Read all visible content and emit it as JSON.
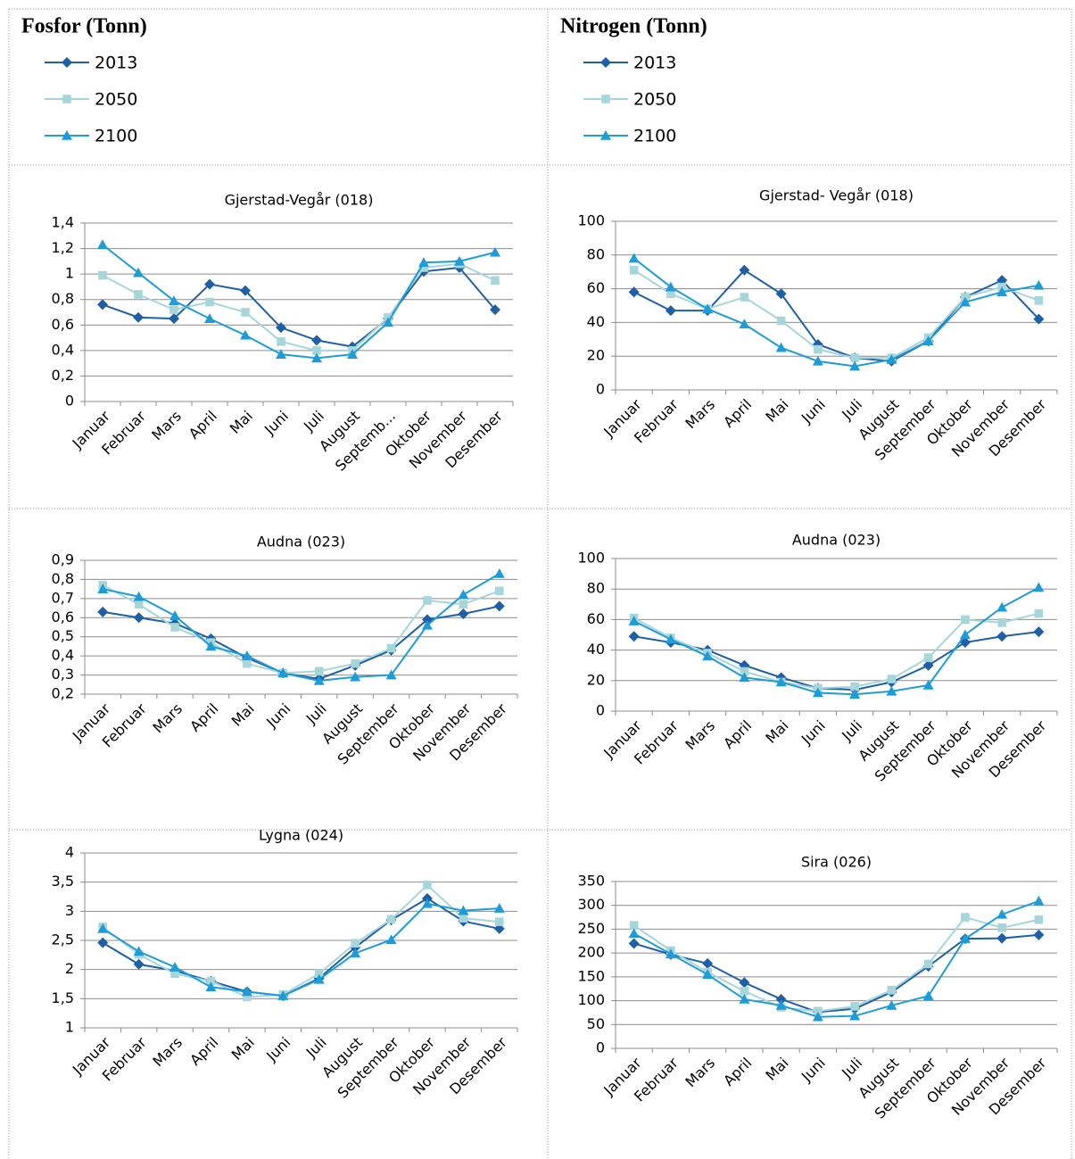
{
  "columns": [
    {
      "title": "Fosfor (Tonn)",
      "legend": [
        {
          "name": "2013",
          "color": "#1f5fa6",
          "marker": "diamond"
        },
        {
          "name": "2050",
          "color": "#a6d6da",
          "marker": "square"
        },
        {
          "name": "2100",
          "color": "#1e9cd7",
          "marker": "triangle"
        }
      ]
    },
    {
      "title": "Nitrogen (Tonn)",
      "legend": [
        {
          "name": "2013",
          "color": "#1f5fa6",
          "marker": "diamond"
        },
        {
          "name": "2050",
          "color": "#a6d6da",
          "marker": "square"
        },
        {
          "name": "2100",
          "color": "#1e9cd7",
          "marker": "triangle"
        }
      ]
    }
  ],
  "chart_data": [
    {
      "type": "line",
      "title": "Gjerstad-Vegår (018)",
      "categories": [
        "Januar",
        "Februar",
        "Mars",
        "April",
        "Mai",
        "Juni",
        "Juli",
        "August",
        "Septemb...",
        "Oktober",
        "November",
        "Desember"
      ],
      "ylim": [
        0,
        1.4
      ],
      "yticks": [
        0,
        {
          "value": 0.2,
          "label": "0,2"
        },
        {
          "value": 0.4,
          "label": "0,4"
        },
        {
          "value": 0.6,
          "label": "0,6"
        },
        {
          "value": 0.8,
          "label": "0,8"
        },
        1,
        {
          "value": 1.2,
          "label": "1,2"
        },
        {
          "value": 1.4,
          "label": "1,4"
        }
      ],
      "grid": true,
      "series": [
        {
          "color": "#1f5fa6",
          "marker": "diamond",
          "values": [
            0.76,
            0.66,
            0.65,
            0.92,
            0.87,
            0.58,
            0.48,
            0.43,
            0.65,
            1.02,
            1.05,
            0.72
          ]
        },
        {
          "color": "#a6d6da",
          "marker": "square",
          "values": [
            0.99,
            0.84,
            0.72,
            0.78,
            0.7,
            0.47,
            0.4,
            0.4,
            0.66,
            1.05,
            1.08,
            0.95
          ]
        },
        {
          "color": "#1e9cd7",
          "marker": "triangle",
          "values": [
            1.23,
            1.01,
            0.79,
            0.65,
            0.52,
            0.37,
            0.34,
            0.37,
            0.62,
            1.09,
            1.1,
            1.17
          ]
        }
      ]
    },
    {
      "type": "line",
      "title": "Gjerstad- Vegår (018)",
      "categories": [
        "Januar",
        "Februar",
        "Mars",
        "April",
        "Mai",
        "Juni",
        "Juli",
        "August",
        "September",
        "Oktober",
        "November",
        "Desember"
      ],
      "ylim": [
        0,
        100
      ],
      "yticks": [
        0,
        20,
        40,
        60,
        80,
        100
      ],
      "grid": true,
      "series": [
        {
          "color": "#1f5fa6",
          "marker": "diamond",
          "values": [
            58,
            47,
            47,
            71,
            57,
            27,
            19,
            17,
            29,
            55,
            65,
            42
          ]
        },
        {
          "color": "#a6d6da",
          "marker": "square",
          "values": [
            71,
            57,
            48,
            55,
            41,
            24,
            19,
            19,
            31,
            55,
            61,
            53
          ]
        },
        {
          "color": "#1e9cd7",
          "marker": "triangle",
          "values": [
            78,
            61,
            48,
            39,
            25,
            17,
            14,
            18,
            29,
            52,
            58,
            62
          ]
        }
      ]
    },
    {
      "type": "line",
      "title": "Audna (023)",
      "categories": [
        "Januar",
        "Februar",
        "Mars",
        "April",
        "Mai",
        "Juni",
        "Juli",
        "August",
        "September",
        "Oktober",
        "November",
        "Desember"
      ],
      "ylim": [
        0.2,
        0.9
      ],
      "yticks": [
        {
          "value": 0.2,
          "label": "0,2"
        },
        {
          "value": 0.3,
          "label": "0,3"
        },
        {
          "value": 0.4,
          "label": "0,4"
        },
        {
          "value": 0.5,
          "label": "0,5"
        },
        {
          "value": 0.6,
          "label": "0,6"
        },
        {
          "value": 0.7,
          "label": "0,7"
        },
        {
          "value": 0.8,
          "label": "0,8"
        },
        {
          "value": 0.9,
          "label": "0,9"
        }
      ],
      "grid": true,
      "series": [
        {
          "color": "#1f5fa6",
          "marker": "diamond",
          "values": [
            0.63,
            0.6,
            0.57,
            0.49,
            0.39,
            0.31,
            0.28,
            0.35,
            0.43,
            0.59,
            0.62,
            0.66
          ]
        },
        {
          "color": "#a6d6da",
          "marker": "square",
          "values": [
            0.77,
            0.67,
            0.55,
            0.47,
            0.36,
            0.31,
            0.32,
            0.36,
            0.44,
            0.69,
            0.67,
            0.74
          ]
        },
        {
          "color": "#1e9cd7",
          "marker": "triangle",
          "values": [
            0.75,
            0.71,
            0.61,
            0.45,
            0.4,
            0.31,
            0.27,
            0.29,
            0.3,
            0.56,
            0.72,
            0.83
          ]
        }
      ]
    },
    {
      "type": "line",
      "title": "Audna (023)",
      "categories": [
        "Januar",
        "Februar",
        "Mars",
        "April",
        "Mai",
        "Juni",
        "Juli",
        "August",
        "September",
        "Oktober",
        "November",
        "Desember"
      ],
      "ylim": [
        0,
        100
      ],
      "yticks": [
        0,
        20,
        40,
        60,
        80,
        100
      ],
      "grid": true,
      "series": [
        {
          "color": "#1f5fa6",
          "marker": "diamond",
          "values": [
            49,
            45,
            40,
            30,
            22,
            15,
            14,
            19,
            30,
            45,
            49,
            52
          ]
        },
        {
          "color": "#a6d6da",
          "marker": "square",
          "values": [
            61,
            48,
            38,
            26,
            19,
            15,
            16,
            21,
            35,
            60,
            58,
            64
          ]
        },
        {
          "color": "#1e9cd7",
          "marker": "triangle",
          "values": [
            59,
            47,
            36,
            22,
            19,
            12,
            11,
            13,
            17,
            50,
            68,
            81
          ]
        }
      ]
    },
    {
      "type": "line",
      "title": "Lygna (024)",
      "categories": [
        "Januar",
        "Februar",
        "Mars",
        "April",
        "Mai",
        "Juni",
        "Juli",
        "August",
        "September",
        "Oktober",
        "November",
        "Desember"
      ],
      "ylim": [
        1,
        4
      ],
      "yticks": [
        1,
        {
          "value": 1.5,
          "label": "1,5"
        },
        2,
        {
          "value": 2.5,
          "label": "2,5"
        },
        3,
        {
          "value": 3.5,
          "label": "3,5"
        },
        4
      ],
      "grid": true,
      "series": [
        {
          "color": "#1f5fa6",
          "marker": "diamond",
          "values": [
            2.46,
            2.09,
            1.98,
            1.8,
            1.62,
            1.55,
            1.85,
            2.38,
            2.85,
            3.22,
            2.83,
            2.7
          ]
        },
        {
          "color": "#a6d6da",
          "marker": "square",
          "values": [
            2.73,
            2.26,
            1.93,
            1.8,
            1.53,
            1.57,
            1.93,
            2.45,
            2.86,
            3.45,
            2.88,
            2.82
          ]
        },
        {
          "color": "#1e9cd7",
          "marker": "triangle",
          "values": [
            2.7,
            2.31,
            2.04,
            1.7,
            1.62,
            1.55,
            1.83,
            2.28,
            2.51,
            3.13,
            3.01,
            3.05
          ]
        }
      ]
    },
    {
      "type": "line",
      "title": "Sira (026)",
      "categories": [
        "Januar",
        "Februar",
        "Mars",
        "April",
        "Mai",
        "Juni",
        "Juli",
        "August",
        "September",
        "Oktober",
        "November",
        "Desember"
      ],
      "ylim": [
        0,
        350
      ],
      "yticks": [
        0,
        50,
        100,
        150,
        200,
        250,
        300,
        350
      ],
      "grid": true,
      "series": [
        {
          "color": "#1f5fa6",
          "marker": "diamond",
          "values": [
            220,
            197,
            178,
            138,
            103,
            76,
            83,
            118,
            172,
            230,
            231,
            238
          ]
        },
        {
          "color": "#a6d6da",
          "marker": "square",
          "values": [
            258,
            205,
            160,
            120,
            86,
            78,
            88,
            122,
            177,
            275,
            253,
            270
          ]
        },
        {
          "color": "#1e9cd7",
          "marker": "triangle",
          "values": [
            241,
            198,
            155,
            103,
            90,
            66,
            68,
            90,
            110,
            230,
            281,
            309
          ]
        }
      ]
    }
  ]
}
